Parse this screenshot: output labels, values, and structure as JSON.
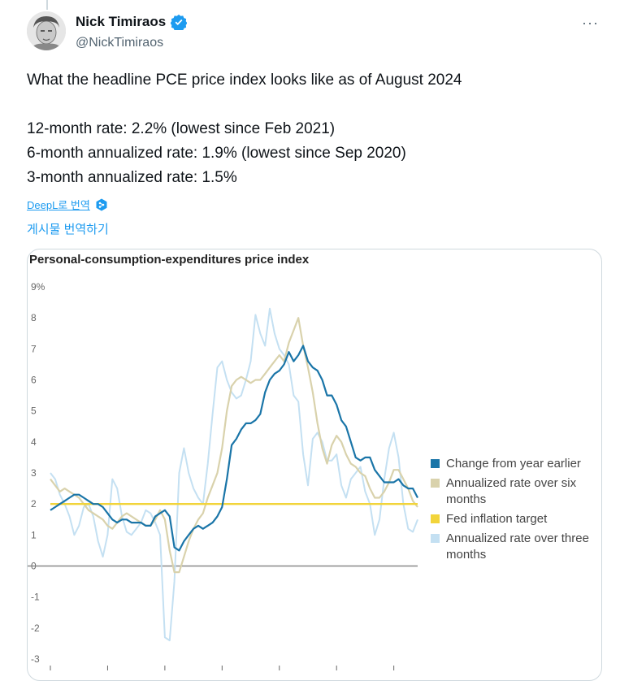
{
  "tweet": {
    "display_name": "Nick Timiraos",
    "handle": "@NickTimiraos",
    "more_label": "···",
    "lines": [
      "What the headline PCE price index looks like as of August 2024",
      "12-month rate: 2.2% (lowest since Feb 2021)",
      "6-month annualized rate: 1.9% (lowest since Sep 2020)",
      "3-month annualized rate: 1.5%"
    ],
    "translate_deepl": "DeepL로 번역",
    "translate_post": "게시물 번역하기"
  },
  "colors": {
    "yoy": "#1a75a8",
    "six": "#d9d2ac",
    "target": "#f2d43a",
    "three": "#c4e0f2",
    "link": "#1d9bf0",
    "verified": "#1d9bf0"
  },
  "chart_data": {
    "type": "line",
    "title": "Personal-consumption-expenditures price index",
    "ylim": [
      -3,
      9
    ],
    "y_ticks": [
      "9%",
      "8",
      "7",
      "6",
      "5",
      "4",
      "3",
      "2",
      "1",
      "0",
      "-1",
      "-2",
      "-3"
    ],
    "legend_position": "right",
    "x_start": 2017,
    "grid": false,
    "series": [
      {
        "name": "Change from year earlier",
        "values": [
          1.8,
          1.9,
          2.0,
          2.1,
          2.2,
          2.3,
          2.3,
          2.2,
          2.1,
          2.0,
          2.0,
          1.9,
          1.7,
          1.5,
          1.4,
          1.5,
          1.5,
          1.4,
          1.4,
          1.4,
          1.3,
          1.3,
          1.6,
          1.7,
          1.8,
          1.6,
          0.6,
          0.5,
          0.8,
          1.0,
          1.2,
          1.3,
          1.2,
          1.3,
          1.4,
          1.6,
          1.9,
          2.8,
          3.9,
          4.1,
          4.4,
          4.6,
          4.6,
          4.7,
          4.9,
          5.6,
          6.0,
          6.2,
          6.3,
          6.5,
          6.9,
          6.6,
          6.8,
          7.1,
          6.6,
          6.4,
          6.3,
          6.0,
          5.5,
          5.5,
          5.2,
          4.7,
          4.5,
          4.0,
          3.5,
          3.4,
          3.5,
          3.5,
          3.1,
          2.9,
          2.7,
          2.7,
          2.7,
          2.8,
          2.6,
          2.5,
          2.5,
          2.2
        ]
      },
      {
        "name": "Annualized rate over six months",
        "values": [
          2.8,
          2.6,
          2.4,
          2.5,
          2.4,
          2.3,
          2.2,
          2.0,
          1.8,
          1.7,
          1.6,
          1.5,
          1.3,
          1.2,
          1.4,
          1.6,
          1.7,
          1.6,
          1.5,
          1.4,
          1.3,
          1.3,
          1.5,
          1.8,
          1.5,
          0.5,
          -0.2,
          -0.2,
          0.3,
          0.8,
          1.2,
          1.5,
          1.7,
          2.2,
          2.6,
          3.0,
          3.8,
          5.0,
          5.8,
          6.0,
          6.1,
          6.0,
          5.9,
          6.0,
          6.0,
          6.2,
          6.4,
          6.6,
          6.8,
          6.6,
          7.2,
          7.6,
          8.0,
          7.1,
          6.4,
          5.6,
          4.6,
          3.8,
          3.3,
          3.9,
          4.2,
          4.0,
          3.6,
          3.3,
          3.2,
          3.0,
          2.9,
          2.5,
          2.2,
          2.2,
          2.4,
          2.7,
          3.1,
          3.1,
          2.8,
          2.5,
          2.1,
          1.9
        ]
      },
      {
        "name": "Fed inflation target",
        "values": [
          2,
          2,
          2,
          2,
          2,
          2,
          2,
          2,
          2,
          2,
          2,
          2,
          2,
          2,
          2,
          2,
          2,
          2,
          2,
          2,
          2,
          2,
          2,
          2,
          2,
          2,
          2,
          2,
          2,
          2,
          2,
          2,
          2,
          2,
          2,
          2,
          2,
          2,
          2,
          2,
          2,
          2,
          2,
          2,
          2,
          2,
          2,
          2,
          2,
          2,
          2,
          2,
          2,
          2,
          2,
          2,
          2,
          2,
          2,
          2,
          2,
          2,
          2,
          2,
          2,
          2,
          2,
          2,
          2,
          2,
          2,
          2,
          2,
          2,
          2,
          2,
          2,
          2
        ]
      },
      {
        "name": "Annualized rate over three months",
        "values": [
          3.0,
          2.8,
          2.3,
          2.0,
          1.6,
          1.0,
          1.3,
          1.9,
          2.0,
          1.6,
          0.8,
          0.3,
          1.0,
          2.8,
          2.5,
          1.6,
          1.1,
          1.0,
          1.2,
          1.4,
          1.8,
          1.7,
          1.4,
          1.0,
          -2.3,
          -2.4,
          -0.5,
          3.0,
          3.8,
          3.0,
          2.5,
          2.2,
          2.0,
          3.3,
          4.9,
          6.4,
          6.6,
          6.0,
          5.6,
          5.4,
          5.5,
          6.0,
          6.6,
          8.1,
          7.5,
          7.1,
          8.3,
          7.5,
          7.0,
          6.8,
          6.5,
          5.5,
          5.3,
          3.6,
          2.6,
          4.1,
          4.3,
          4.0,
          3.4,
          3.4,
          3.6,
          2.6,
          2.2,
          2.8,
          3.0,
          3.2,
          2.4,
          2.0,
          1.0,
          1.5,
          2.8,
          3.8,
          4.3,
          3.5,
          2.0,
          1.2,
          1.1,
          1.5
        ]
      }
    ]
  }
}
